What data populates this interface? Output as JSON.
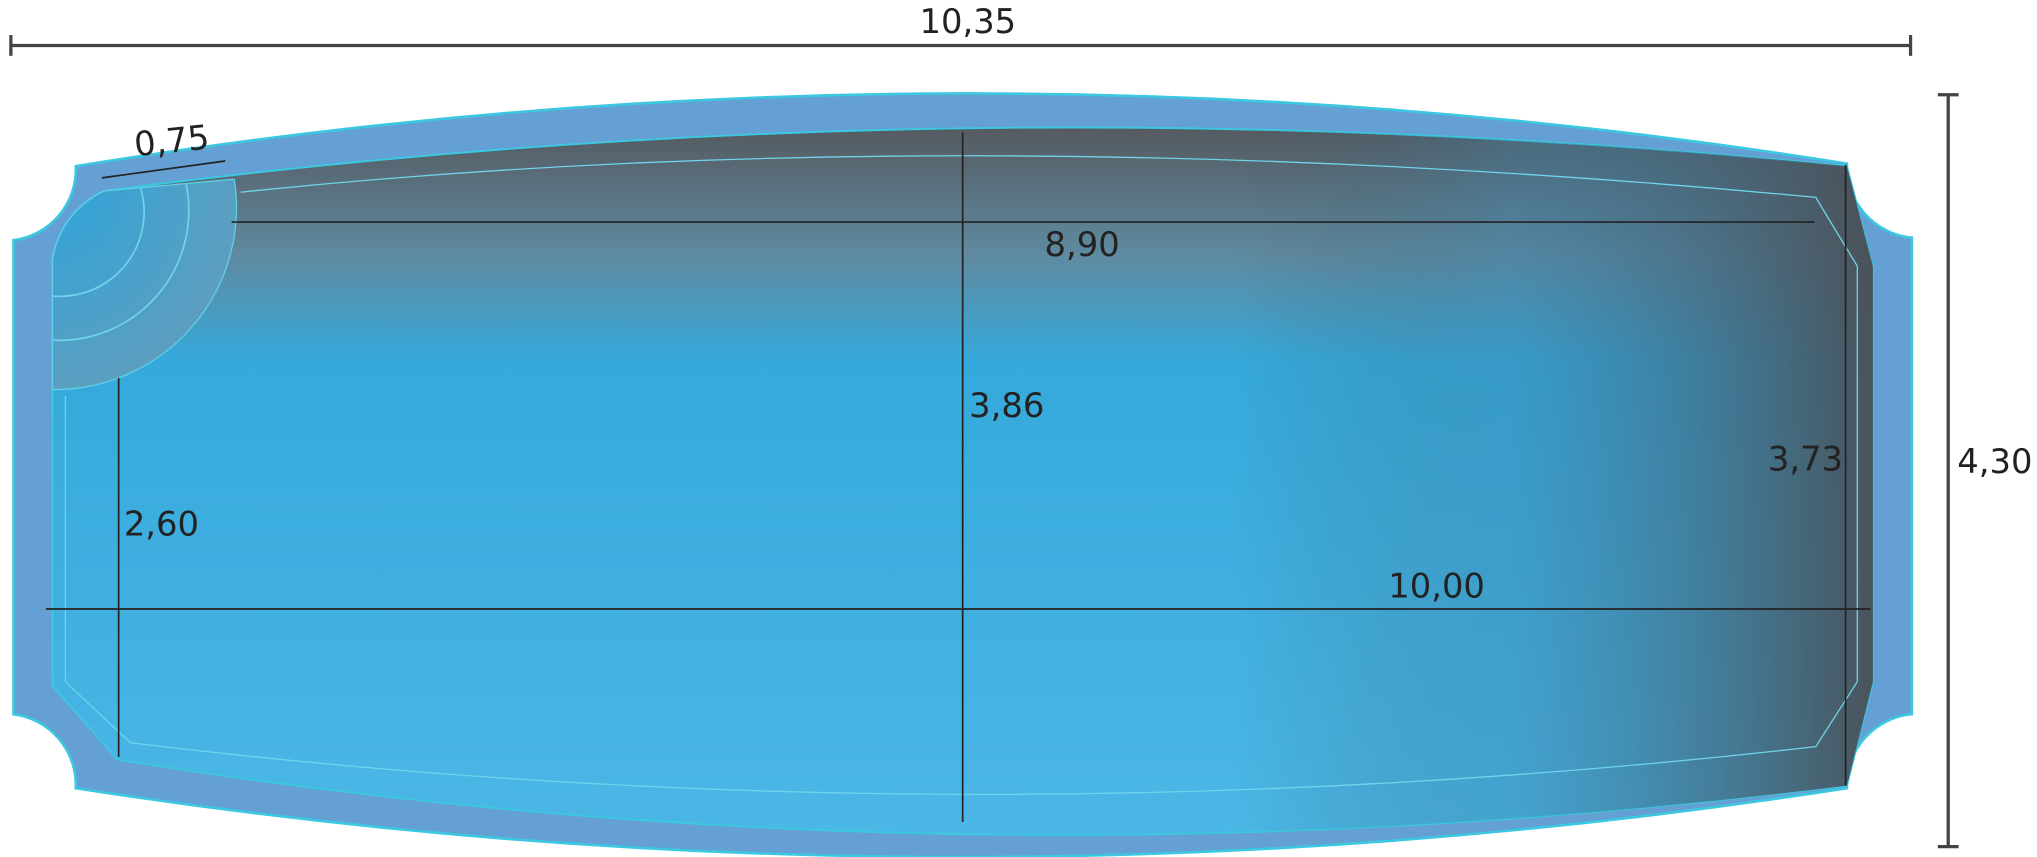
{
  "dimensions": {
    "overall_length": "10,35",
    "overall_width": "4,30",
    "step_width": "0,75",
    "top_inner_length": "8,90",
    "center_width": "3,86",
    "left_width": "2,60",
    "right_width": "3,73",
    "inner_length": "10,00"
  }
}
